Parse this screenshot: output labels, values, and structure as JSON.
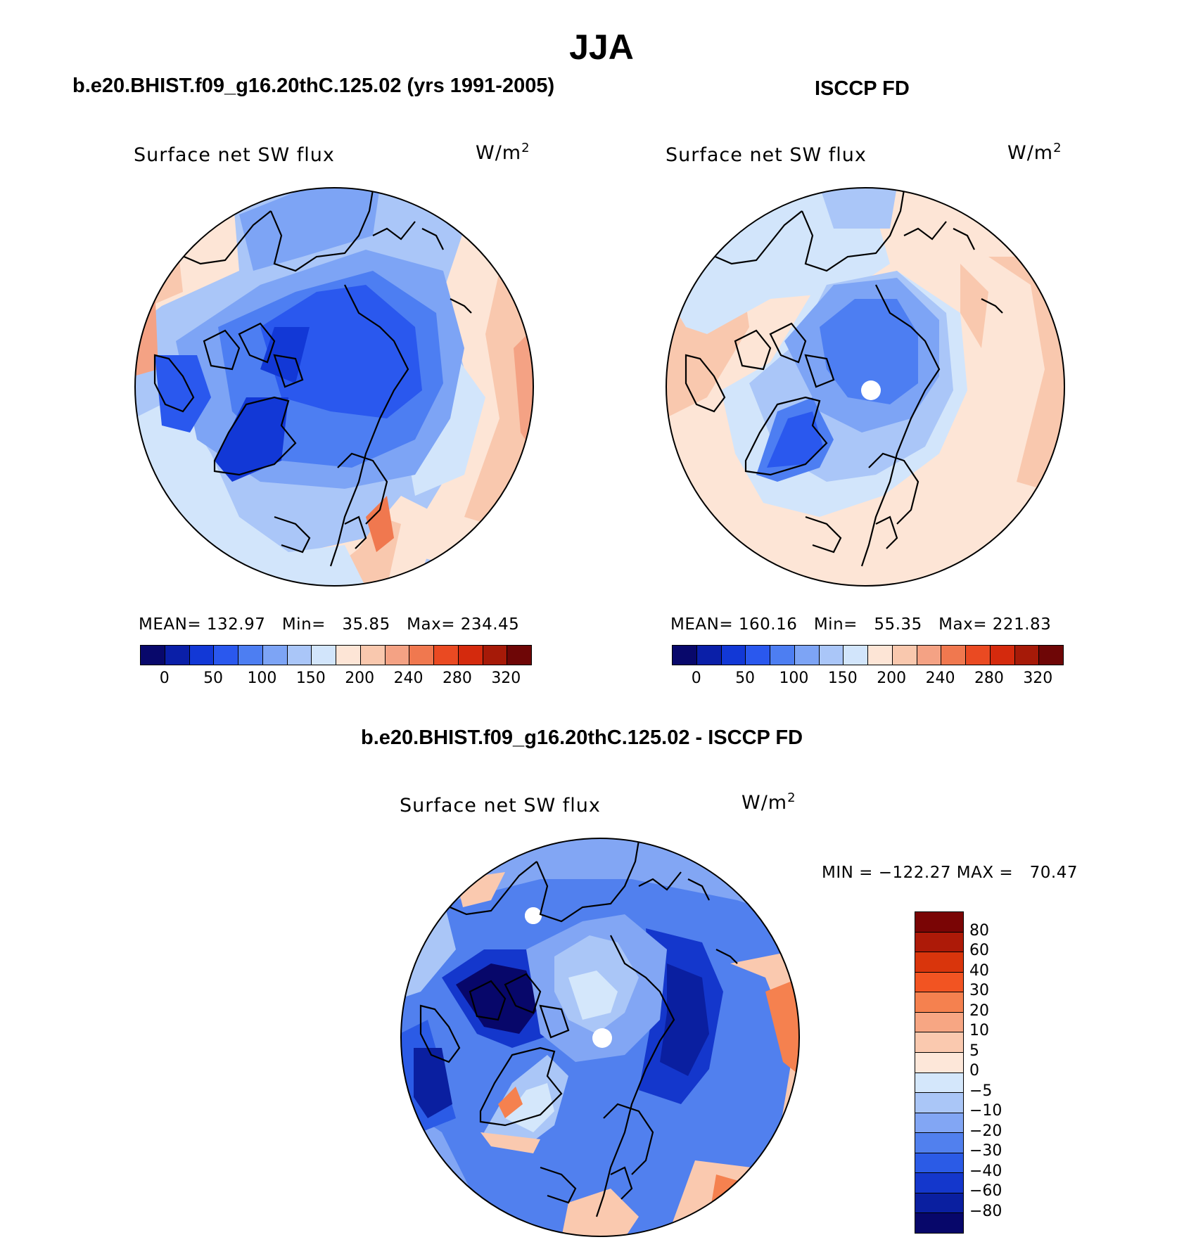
{
  "main_title": "JJA",
  "panels": [
    {
      "id": "model",
      "case_title": "b.e20.BHIST.f09_g16.20thC.125.02 (yrs 1991-2005)",
      "variable": "Surface net SW flux",
      "units": "W/m",
      "units_sup": "2",
      "stats": {
        "mean_label": "MEAN=",
        "mean": "132.97",
        "min_label": "Min=",
        "min": "35.85",
        "max_label": "Max=",
        "max": "234.45"
      },
      "colorbar_labels": [
        "0",
        "50",
        "100",
        "150",
        "200",
        "240",
        "280",
        "320"
      ]
    },
    {
      "id": "obs",
      "case_title": "ISCCP FD",
      "variable": "Surface net SW flux",
      "units": "W/m",
      "units_sup": "2",
      "stats": {
        "mean_label": "MEAN=",
        "mean": "160.16",
        "min_label": "Min=",
        "min": "55.35",
        "max_label": "Max=",
        "max": "221.83"
      },
      "colorbar_labels": [
        "0",
        "50",
        "100",
        "150",
        "200",
        "240",
        "280",
        "320"
      ]
    }
  ],
  "diff": {
    "title": "b.e20.BHIST.f09_g16.20thC.125.02 - ISCCP FD",
    "variable": "Surface net SW flux",
    "units": "W/m",
    "units_sup": "2",
    "minmax": "MIN = −122.27 MAX =   70.47",
    "colorbar_labels": [
      "80",
      "60",
      "40",
      "30",
      "20",
      "10",
      "5",
      "0",
      "−5",
      "−10",
      "−20",
      "−30",
      "−40",
      "−60",
      "−80"
    ]
  },
  "colors": {
    "abs_scale": [
      "#08086b",
      "#0a1fa8",
      "#1238d6",
      "#2a58ee",
      "#4d7ef2",
      "#7da4f5",
      "#aac6f8",
      "#d2e5fb",
      "#fde5d6",
      "#f9c8ae",
      "#f4a284",
      "#f0784f",
      "#ea4a22",
      "#d42a0d",
      "#a61a08",
      "#6e0606"
    ],
    "diff_scale": [
      "#7a0505",
      "#ad1a08",
      "#d9350c",
      "#f25422",
      "#f5814f",
      "#f7a683",
      "#fac9af",
      "#fde7d9",
      "#d4e7fb",
      "#aac6f7",
      "#82a6f4",
      "#5180ee",
      "#2b5be6",
      "#1437cc",
      "#0a1fa0",
      "#07076a"
    ]
  }
}
